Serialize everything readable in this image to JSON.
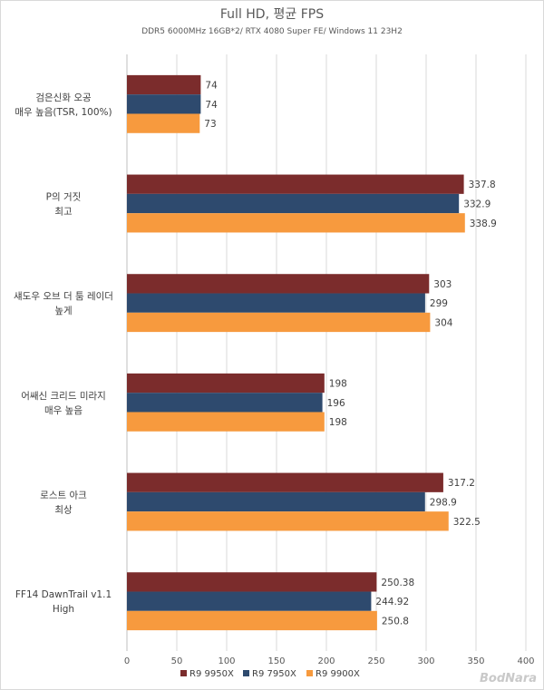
{
  "chart_data": {
    "type": "bar",
    "orientation": "horizontal",
    "title": "Full HD, 평균 FPS",
    "subtitle": "DDR5 6000MHz 16GB*2/ RTX 4080 Super FE/ Windows 11 23H2",
    "categories": [
      [
        "검은신화 오공",
        "매우 높음(TSR, 100%)"
      ],
      [
        "P의 거짓",
        "최고"
      ],
      [
        "섀도우 오브 더 툼 레이더",
        "높게"
      ],
      [
        "어쌔신 크리드 미라지",
        "매우 높음"
      ],
      [
        "로스트 아크",
        "최상"
      ],
      [
        "FF14 DawnTrail v1.1",
        "High"
      ]
    ],
    "series": [
      {
        "name": "R9 9950X",
        "color": "#7b2c2c",
        "values": [
          74,
          337.8,
          303,
          198,
          317.2,
          250.38
        ],
        "labels": [
          "74",
          "337.8",
          "303",
          "198",
          "317.2",
          "250.38"
        ]
      },
      {
        "name": "R9 7950X",
        "color": "#2e4a6e",
        "values": [
          74,
          332.9,
          299,
          196,
          298.9,
          244.92
        ],
        "labels": [
          "74",
          "332.9",
          "299",
          "196",
          "298.9",
          "244.92"
        ]
      },
      {
        "name": "R9 9900X",
        "color": "#f79a3e",
        "values": [
          73,
          338.9,
          304,
          198,
          322.5,
          250.8
        ],
        "labels": [
          "73",
          "338.9",
          "304",
          "198",
          "322.5",
          "250.8"
        ]
      }
    ],
    "xlim": [
      0,
      400
    ],
    "xticks": [
      0,
      50,
      100,
      150,
      200,
      250,
      300,
      350,
      400
    ],
    "grid": true,
    "legend_position": "bottom"
  },
  "watermark": "BodNara"
}
